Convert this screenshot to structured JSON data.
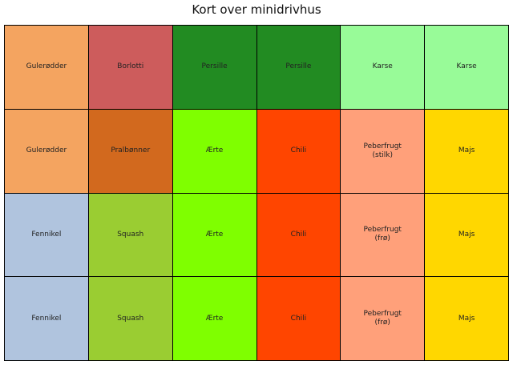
{
  "title": "Kort over minidrivhus",
  "grid": {
    "rows": [
      [
        {
          "label": "Gulerødder",
          "color": "#F4A460"
        },
        {
          "label": "Borlotti",
          "color": "#CD5C5C"
        },
        {
          "label": "Persille",
          "color": "#228B22"
        },
        {
          "label": "Persille",
          "color": "#228B22"
        },
        {
          "label": "Karse",
          "color": "#98FB98"
        },
        {
          "label": "Karse",
          "color": "#98FB98"
        }
      ],
      [
        {
          "label": "Gulerødder",
          "color": "#F4A460"
        },
        {
          "label": "Pralbønner",
          "color": "#D2691E"
        },
        {
          "label": "Ærte",
          "color": "#7FFF00"
        },
        {
          "label": "Chili",
          "color": "#FF4500"
        },
        {
          "label": "Peberfrugt\n(stilk)",
          "color": "#FFA07A"
        },
        {
          "label": "Majs",
          "color": "#FFD700"
        }
      ],
      [
        {
          "label": "Fennikel",
          "color": "#B0C4DE"
        },
        {
          "label": "Squash",
          "color": "#9ACD32"
        },
        {
          "label": "Ærte",
          "color": "#7FFF00"
        },
        {
          "label": "Chili",
          "color": "#FF4500"
        },
        {
          "label": "Peberfrugt\n(frø)",
          "color": "#FFA07A"
        },
        {
          "label": "Majs",
          "color": "#FFD700"
        }
      ],
      [
        {
          "label": "Fennikel",
          "color": "#B0C4DE"
        },
        {
          "label": "Squash",
          "color": "#9ACD32"
        },
        {
          "label": "Ærte",
          "color": "#7FFF00"
        },
        {
          "label": "Chili",
          "color": "#FF4500"
        },
        {
          "label": "Peberfrugt\n(frø)",
          "color": "#FFA07A"
        },
        {
          "label": "Majs",
          "color": "#FFD700"
        }
      ]
    ]
  }
}
